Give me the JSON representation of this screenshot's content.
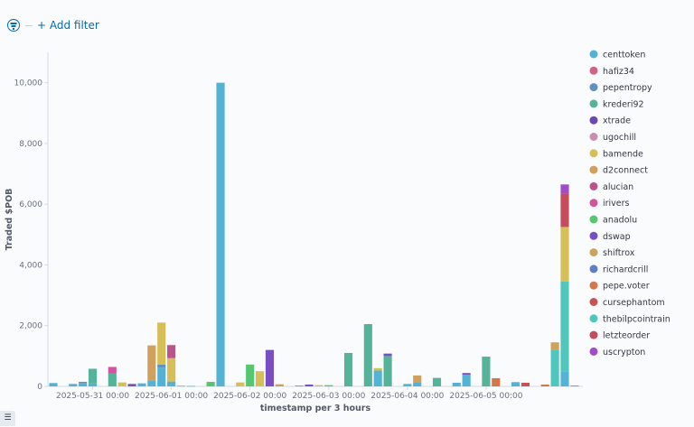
{
  "filter_bar": {
    "add_filter_label": "+ Add filter",
    "filter_icon": "filter-icon"
  },
  "colors": {
    "centtoken": "#54b3d5",
    "hafiz34": "#d36086",
    "pepentropy": "#6092c0",
    "krederi92": "#54b399",
    "xtrade": "#6b48b3",
    "ugochill": "#ca8eae",
    "bamende": "#d6bf57",
    "d2connect": "#d1a05a",
    "alucian": "#b9548b",
    "irivers": "#d5539c",
    "anadolu": "#54c770",
    "dswap": "#7850c4",
    "shiftrox": "#c9a55f",
    "richardcrill": "#5c7fc7",
    "pepe.voter": "#d1774a",
    "cursephantom": "#c75455",
    "thebilpcointrain": "#4fc7bd",
    "letzteorder": "#c44c5c",
    "uscrypton": "#a04dc7"
  },
  "chart_data": {
    "type": "bar",
    "stacked": true,
    "xlabel": "timestamp per 3 hours",
    "ylabel": "Traded $POB",
    "ylim": [
      0,
      11000
    ],
    "yticks": [
      0,
      2000,
      4000,
      6000,
      8000,
      10000
    ],
    "ytick_labels": [
      "0",
      "2,000",
      "4,000",
      "6,000",
      "8,000",
      "10,000"
    ],
    "x_range": [
      "2025-05-30 12:00",
      "2025-06-06 00:00"
    ],
    "xticks": [
      "2025-05-31 00:00",
      "2025-06-01 00:00",
      "2025-06-02 00:00",
      "2025-06-03 00:00",
      "2025-06-04 00:00",
      "2025-06-05 00:00"
    ],
    "bar_interval_hours": 3,
    "legend_position": "right",
    "grid": false,
    "legend": [
      "centtoken",
      "hafiz34",
      "pepentropy",
      "krederi92",
      "xtrade",
      "ugochill",
      "bamende",
      "d2connect",
      "alucian",
      "irivers",
      "anadolu",
      "dswap",
      "shiftrox",
      "richardcrill",
      "pepe.voter",
      "cursephantom",
      "thebilpcointrain",
      "letzteorder",
      "uscrypton"
    ],
    "bars": [
      {
        "t": "2025-05-30 12:00",
        "segments": [
          {
            "series": "centtoken",
            "value": 110
          }
        ]
      },
      {
        "t": "2025-05-30 18:00",
        "segments": [
          {
            "series": "centtoken",
            "value": 80
          }
        ]
      },
      {
        "t": "2025-05-30 21:00",
        "segments": [
          {
            "series": "centtoken",
            "value": 100
          },
          {
            "series": "pepentropy",
            "value": 50
          }
        ]
      },
      {
        "t": "2025-05-31 00:00",
        "segments": [
          {
            "series": "centtoken",
            "value": 100
          },
          {
            "series": "krederi92",
            "value": 480
          }
        ]
      },
      {
        "t": "2025-05-31 06:00",
        "segments": [
          {
            "series": "krederi92",
            "value": 420
          },
          {
            "series": "irivers",
            "value": 220
          }
        ]
      },
      {
        "t": "2025-05-31 09:00",
        "segments": [
          {
            "series": "bamende",
            "value": 130
          }
        ]
      },
      {
        "t": "2025-05-31 12:00",
        "segments": [
          {
            "series": "dswap",
            "value": 80
          }
        ]
      },
      {
        "t": "2025-05-31 15:00",
        "segments": [
          {
            "series": "centtoken",
            "value": 100
          }
        ]
      },
      {
        "t": "2025-05-31 18:00",
        "segments": [
          {
            "series": "centtoken",
            "value": 200
          },
          {
            "series": "d2connect",
            "value": 1150
          }
        ]
      },
      {
        "t": "2025-05-31 21:00",
        "segments": [
          {
            "series": "centtoken",
            "value": 620
          },
          {
            "series": "pepentropy",
            "value": 100
          },
          {
            "series": "bamende",
            "value": 1380
          }
        ]
      },
      {
        "t": "2025-06-01 00:00",
        "segments": [
          {
            "series": "centtoken",
            "value": 160
          },
          {
            "series": "bamende",
            "value": 770
          },
          {
            "series": "alucian",
            "value": 430
          }
        ]
      },
      {
        "t": "2025-06-01 03:00",
        "segments": [
          {
            "series": "centtoken",
            "value": 20
          }
        ]
      },
      {
        "t": "2025-06-01 06:00",
        "segments": [
          {
            "series": "centtoken",
            "value": 15
          }
        ]
      },
      {
        "t": "2025-06-01 12:00",
        "segments": [
          {
            "series": "anadolu",
            "value": 150
          }
        ]
      },
      {
        "t": "2025-06-01 15:00",
        "segments": [
          {
            "series": "centtoken",
            "value": 10000
          }
        ]
      },
      {
        "t": "2025-06-01 21:00",
        "segments": [
          {
            "series": "bamende",
            "value": 130
          }
        ]
      },
      {
        "t": "2025-06-02 00:00",
        "segments": [
          {
            "series": "anadolu",
            "value": 720
          }
        ]
      },
      {
        "t": "2025-06-02 03:00",
        "segments": [
          {
            "series": "bamende",
            "value": 500
          }
        ]
      },
      {
        "t": "2025-06-02 06:00",
        "segments": [
          {
            "series": "dswap",
            "value": 1200
          }
        ]
      },
      {
        "t": "2025-06-02 09:00",
        "segments": [
          {
            "series": "d2connect",
            "value": 70
          }
        ]
      },
      {
        "t": "2025-06-02 15:00",
        "segments": [
          {
            "series": "centtoken",
            "value": 30
          }
        ]
      },
      {
        "t": "2025-06-02 18:00",
        "segments": [
          {
            "series": "dswap",
            "value": 60
          }
        ]
      },
      {
        "t": "2025-06-02 21:00",
        "segments": [
          {
            "series": "bamende",
            "value": 40
          }
        ]
      },
      {
        "t": "2025-06-03 00:00",
        "segments": [
          {
            "series": "anadolu",
            "value": 40
          }
        ]
      },
      {
        "t": "2025-06-03 06:00",
        "segments": [
          {
            "series": "krederi92",
            "value": 1100
          }
        ]
      },
      {
        "t": "2025-06-03 12:00",
        "segments": [
          {
            "series": "krederi92",
            "value": 2050
          }
        ]
      },
      {
        "t": "2025-06-03 15:00",
        "segments": [
          {
            "series": "centtoken",
            "value": 520
          },
          {
            "series": "bamende",
            "value": 80
          }
        ]
      },
      {
        "t": "2025-06-03 18:00",
        "segments": [
          {
            "series": "krederi92",
            "value": 1000
          },
          {
            "series": "dswap",
            "value": 80
          }
        ]
      },
      {
        "t": "2025-06-04 00:00",
        "segments": [
          {
            "series": "centtoken",
            "value": 80
          }
        ]
      },
      {
        "t": "2025-06-04 03:00",
        "segments": [
          {
            "series": "centtoken",
            "value": 140
          },
          {
            "series": "d2connect",
            "value": 220
          }
        ]
      },
      {
        "t": "2025-06-04 09:00",
        "segments": [
          {
            "series": "krederi92",
            "value": 280
          }
        ]
      },
      {
        "t": "2025-06-04 15:00",
        "segments": [
          {
            "series": "centtoken",
            "value": 120
          }
        ]
      },
      {
        "t": "2025-06-04 18:00",
        "segments": [
          {
            "series": "centtoken",
            "value": 380
          },
          {
            "series": "dswap",
            "value": 60
          }
        ]
      },
      {
        "t": "2025-06-05 00:00",
        "segments": [
          {
            "series": "krederi92",
            "value": 980
          }
        ]
      },
      {
        "t": "2025-06-05 03:00",
        "segments": [
          {
            "series": "pepe.voter",
            "value": 270
          }
        ]
      },
      {
        "t": "2025-06-05 09:00",
        "segments": [
          {
            "series": "centtoken",
            "value": 140
          }
        ]
      },
      {
        "t": "2025-06-05 12:00",
        "segments": [
          {
            "series": "cursephantom",
            "value": 120
          }
        ]
      },
      {
        "t": "2025-06-05 18:00",
        "segments": [
          {
            "series": "pepe.voter",
            "value": 60
          }
        ]
      },
      {
        "t": "2025-06-05 21:00",
        "segments": [
          {
            "series": "thebilpcointrain",
            "value": 1200
          },
          {
            "series": "d2connect",
            "value": 250
          }
        ]
      },
      {
        "t": "2025-06-06 00:00",
        "segments": [
          {
            "series": "centtoken",
            "value": 500
          },
          {
            "series": "thebilpcointrain",
            "value": 2950
          },
          {
            "series": "bamende",
            "value": 1800
          },
          {
            "series": "letzteorder",
            "value": 1100
          },
          {
            "series": "uscrypton",
            "value": 300
          }
        ]
      },
      {
        "t": "2025-06-06 03:00",
        "segments": [
          {
            "series": "centtoken",
            "value": 30
          }
        ]
      }
    ]
  }
}
